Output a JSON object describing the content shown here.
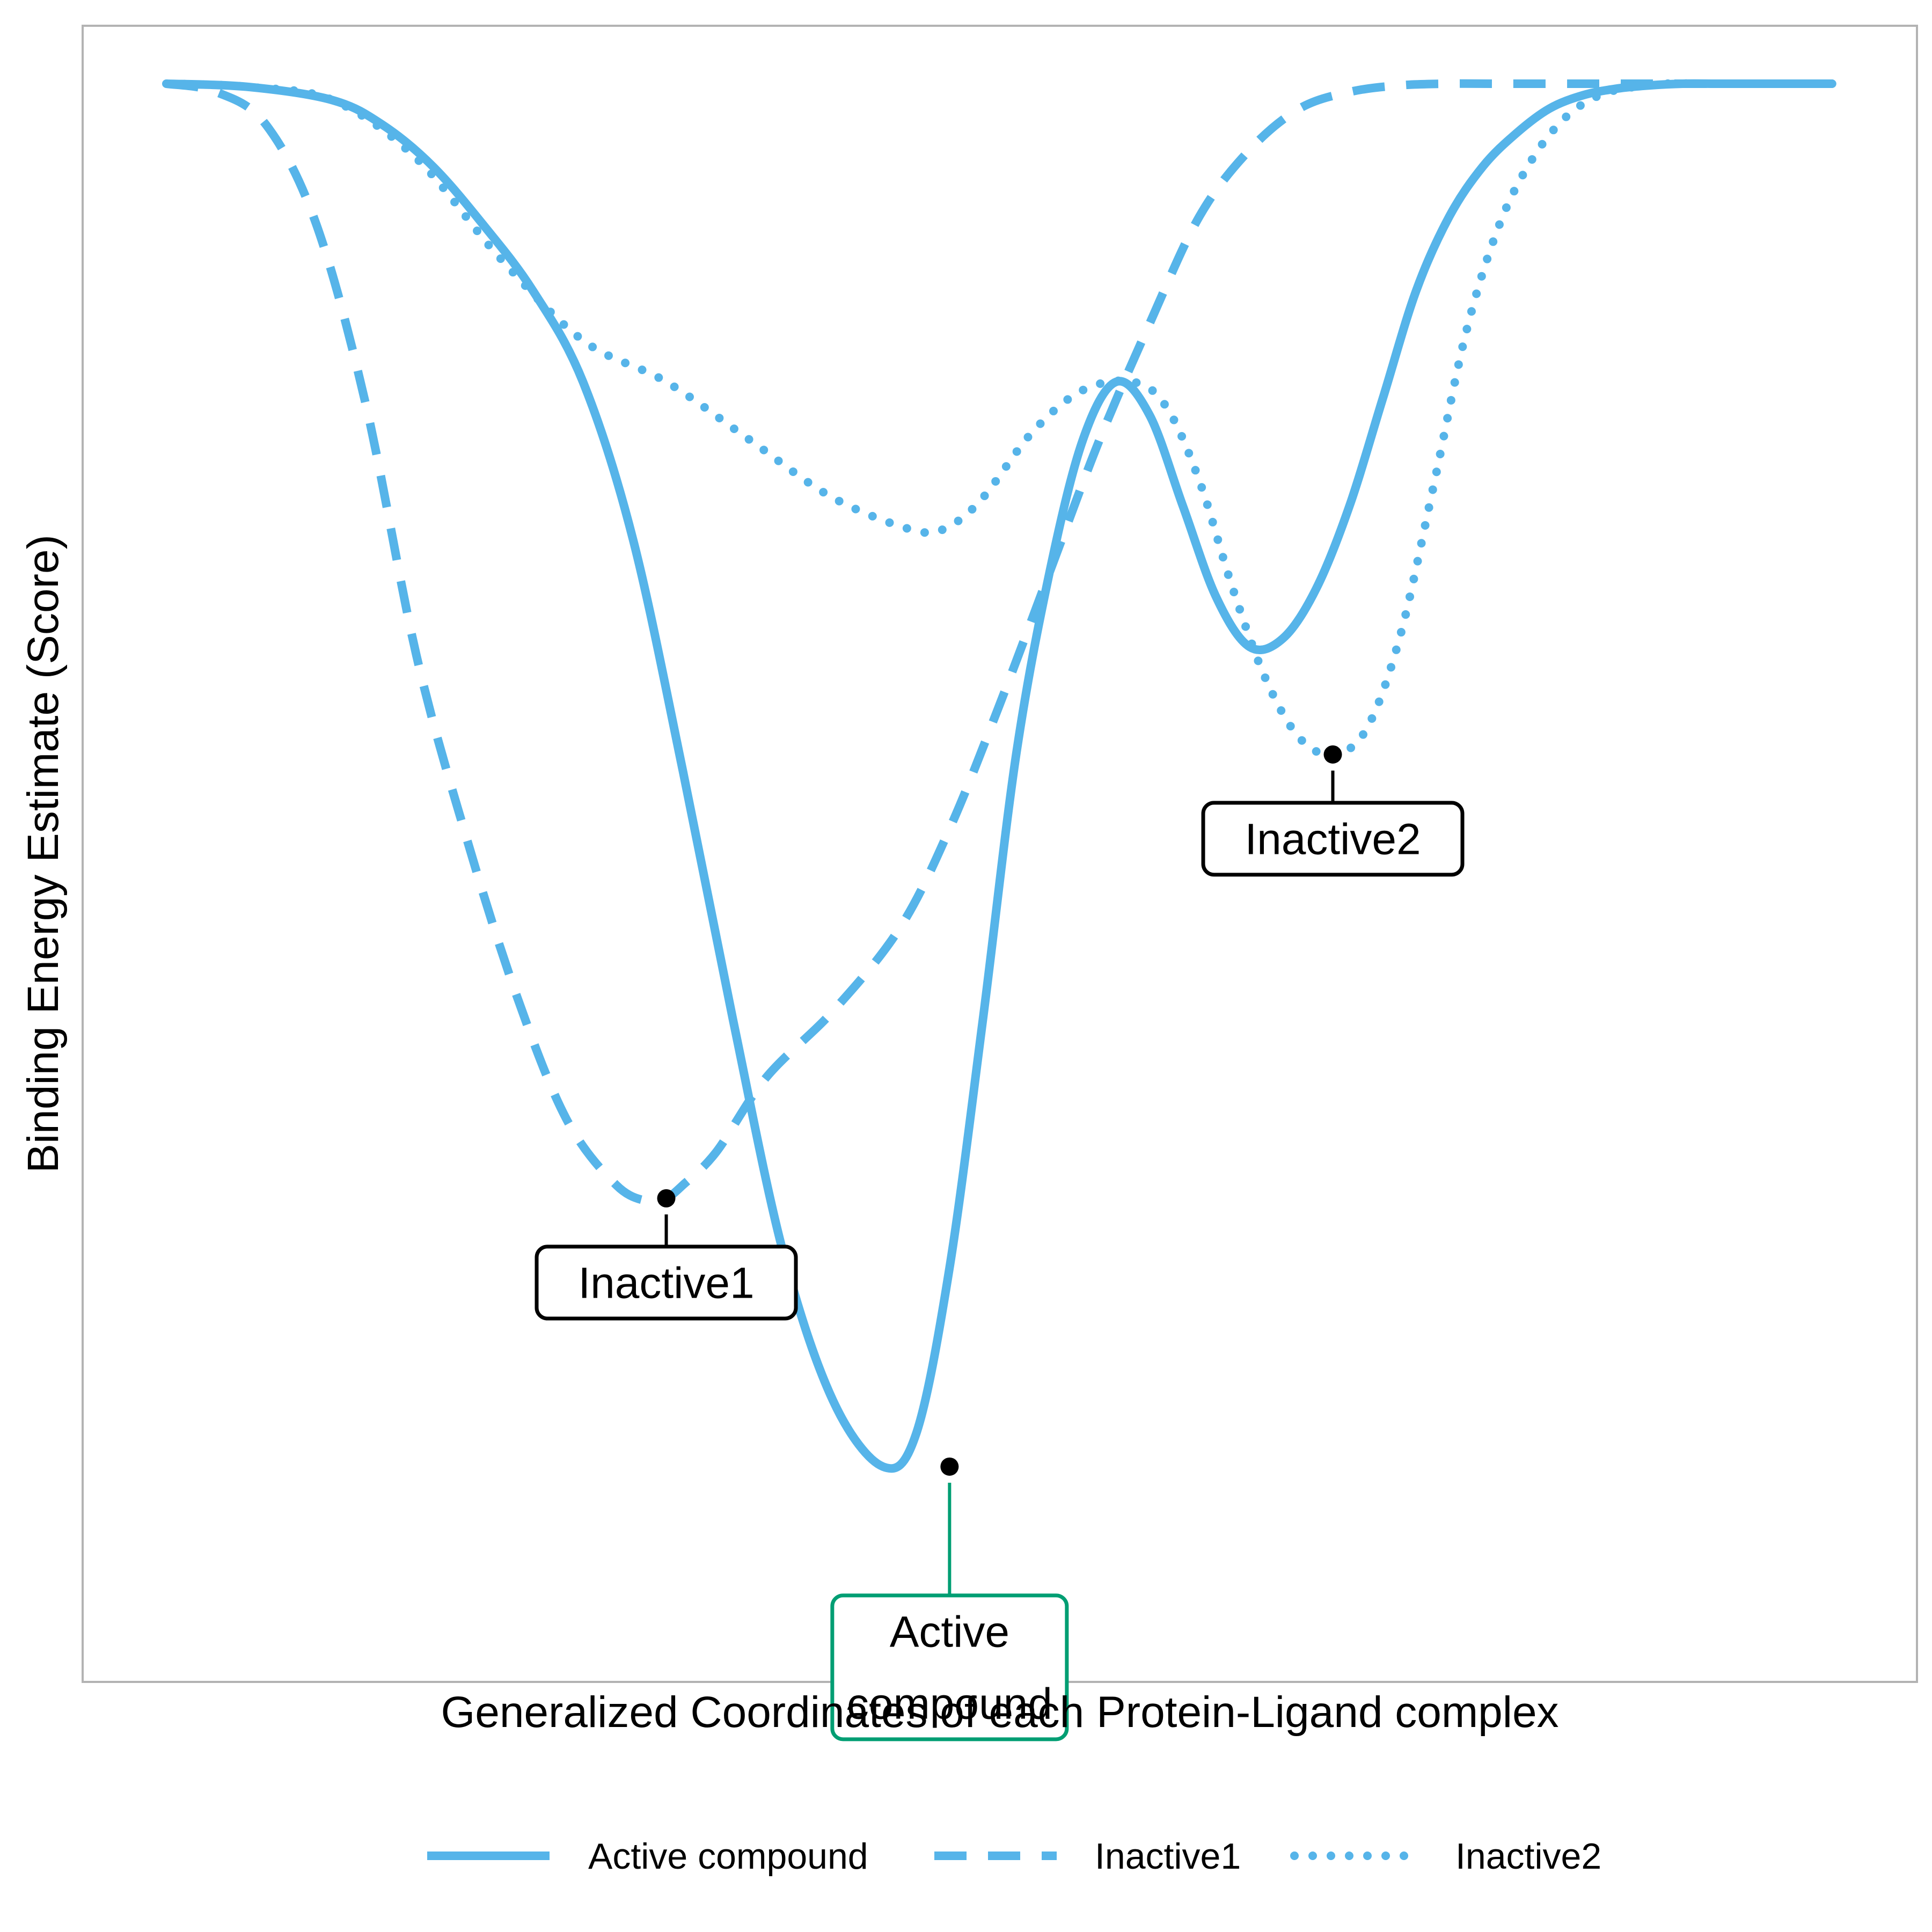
{
  "chart_data": {
    "type": "line",
    "title": "",
    "xlabel": "Generalized Coordinates of each Protein-Ligand complex",
    "ylabel": "Binding Energy Estimate (Score)",
    "xlim": [
      0,
      100
    ],
    "ylim": [
      0,
      100
    ],
    "grid": false,
    "ticks_visible": false,
    "legend_position": "bottom",
    "line_color": "#56B4E9",
    "series": [
      {
        "name": "Active compound",
        "style": "solid",
        "x": [
          0,
          5,
          10,
          13,
          16,
          19,
          22,
          25,
          28,
          31,
          34,
          37,
          40,
          43,
          45,
          47,
          49,
          51,
          53,
          55,
          57,
          59,
          61,
          63,
          65,
          67,
          69,
          71,
          73,
          75,
          77,
          79,
          81,
          83,
          85,
          87,
          89,
          91,
          93,
          95,
          97,
          100
        ],
        "y": [
          96.5,
          96.3,
          95.5,
          94.0,
          91.5,
          88.0,
          84.0,
          78.5,
          69.0,
          55.0,
          40.0,
          26.0,
          17.0,
          13.0,
          15.0,
          25.0,
          40.0,
          56.0,
          67.0,
          75.0,
          78.5,
          76.5,
          71.0,
          65.5,
          62.5,
          63.0,
          66.0,
          71.0,
          77.5,
          84.0,
          88.5,
          91.5,
          93.5,
          95.0,
          95.8,
          96.2,
          96.4,
          96.5,
          96.5,
          96.5,
          96.5,
          96.5
        ]
      },
      {
        "name": "Inactive1",
        "style": "dashed",
        "x": [
          0,
          3,
          6,
          9,
          12,
          15,
          18,
          21,
          24,
          27,
          29,
          30,
          31,
          33,
          36,
          40,
          44,
          47,
          50,
          53,
          56,
          59,
          62,
          65,
          68,
          71,
          74,
          77,
          80,
          85,
          90,
          95,
          100
        ],
        "y": [
          96.5,
          96.0,
          94.0,
          88.0,
          77.0,
          62.0,
          51.0,
          41.5,
          34.0,
          30.0,
          29.0,
          29.2,
          30.0,
          32.0,
          36.5,
          40.5,
          45.5,
          51.5,
          59.0,
          67.0,
          75.0,
          82.0,
          88.5,
          92.5,
          95.0,
          96.0,
          96.4,
          96.5,
          96.5,
          96.5,
          96.5,
          96.5,
          96.5
        ]
      },
      {
        "name": "Inactive2",
        "style": "dotted",
        "x": [
          0,
          5,
          10,
          15,
          20,
          25,
          30,
          35,
          40,
          45,
          47,
          49,
          52,
          55,
          58,
          60,
          62,
          64,
          66,
          68,
          70,
          72,
          74,
          76,
          78,
          80,
          82,
          84,
          86,
          88,
          90,
          92,
          95,
          100
        ],
        "y": [
          96.5,
          96.3,
          95.5,
          92.0,
          86.0,
          81.0,
          78.5,
          75.0,
          71.5,
          69.5,
          69.8,
          71.5,
          75.5,
          78.0,
          78.5,
          77.0,
          72.5,
          66.0,
          60.5,
          57.0,
          56.0,
          57.5,
          63.0,
          72.0,
          81.5,
          88.0,
          92.0,
          94.5,
          95.8,
          96.3,
          96.5,
          96.5,
          96.5,
          96.5
        ]
      }
    ],
    "annotations": [
      {
        "label": "Active compound",
        "lines": [
          "Active",
          "compound"
        ],
        "x": 47,
        "y": 13,
        "highlight_color": "#009E73"
      },
      {
        "label": "Inactive1",
        "lines": [
          "Inactive1"
        ],
        "x": 30,
        "y": 29.2,
        "highlight_color": "#000000"
      },
      {
        "label": "Inactive2",
        "lines": [
          "Inactive2"
        ],
        "x": 70,
        "y": 56.0,
        "highlight_color": "#000000"
      }
    ]
  }
}
